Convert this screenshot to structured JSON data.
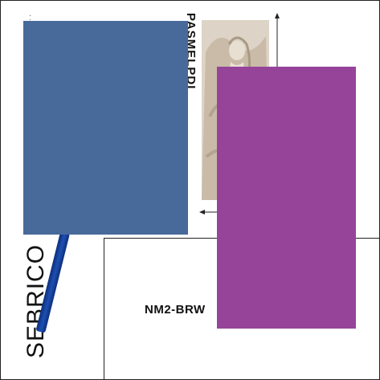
{
  "brand": {
    "vertical_text": "SEBRICO"
  },
  "product": {
    "vertical_name": "PASMELPDI",
    "code": "NM2-BRW"
  },
  "small_text": {
    "vertical_label": "· · ·  s"
  },
  "colors": {
    "blue_block": "#476a9b",
    "purple_block": "#96449a",
    "pen": "#1e4fb3"
  }
}
